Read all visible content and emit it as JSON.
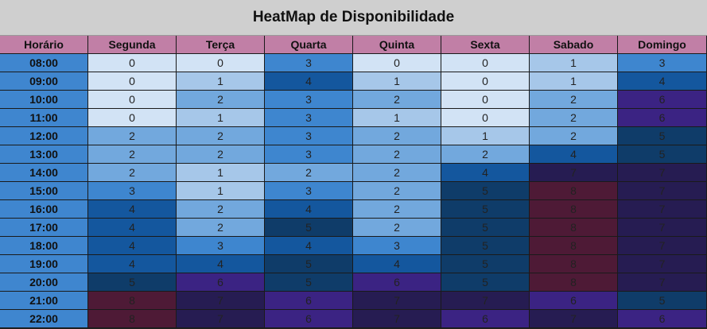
{
  "chart_data": {
    "type": "heatmap",
    "title": "HeatMap de Disponibilidade",
    "corner_label": "Horário",
    "columns": [
      "Segunda",
      "Terça",
      "Quarta",
      "Quinta",
      "Sexta",
      "Sabado",
      "Domingo"
    ],
    "rows": [
      "08:00",
      "09:00",
      "10:00",
      "11:00",
      "12:00",
      "13:00",
      "14:00",
      "15:00",
      "16:00",
      "17:00",
      "18:00",
      "19:00",
      "20:00",
      "21:00",
      "22:00"
    ],
    "values": [
      [
        0,
        0,
        3,
        0,
        0,
        1,
        3
      ],
      [
        0,
        1,
        4,
        1,
        0,
        1,
        4
      ],
      [
        0,
        2,
        3,
        2,
        0,
        2,
        6
      ],
      [
        0,
        1,
        3,
        1,
        0,
        2,
        6
      ],
      [
        2,
        2,
        3,
        2,
        1,
        2,
        5
      ],
      [
        2,
        2,
        3,
        2,
        2,
        4,
        5
      ],
      [
        2,
        1,
        2,
        2,
        4,
        7,
        7
      ],
      [
        3,
        1,
        3,
        2,
        5,
        8,
        7
      ],
      [
        4,
        2,
        4,
        2,
        5,
        8,
        7
      ],
      [
        4,
        2,
        5,
        2,
        5,
        8,
        7
      ],
      [
        4,
        3,
        4,
        3,
        5,
        8,
        7
      ],
      [
        4,
        4,
        5,
        4,
        5,
        8,
        7
      ],
      [
        5,
        6,
        5,
        6,
        5,
        8,
        7
      ],
      [
        8,
        7,
        6,
        7,
        7,
        6,
        5
      ],
      [
        8,
        7,
        6,
        7,
        6,
        7,
        6
      ]
    ],
    "value_range": [
      0,
      8
    ],
    "colors": {
      "0": "#d2e3f5",
      "1": "#a6c7e9",
      "2": "#72a8dd",
      "3": "#3e86cf",
      "4": "#14579e",
      "5": "#0f3c69",
      "6": "#3b2383",
      "7": "#261c52",
      "8": "#4e1a36"
    },
    "text_colors": {
      "0": "#222222",
      "1": "#222222",
      "2": "#222222",
      "3": "#222222",
      "4": "#222222",
      "5": "#222222",
      "6": "#222222",
      "7": "#222222",
      "8": "#222222"
    },
    "header_color": "#c17fa6",
    "row_label_color": "#3f86cf"
  }
}
